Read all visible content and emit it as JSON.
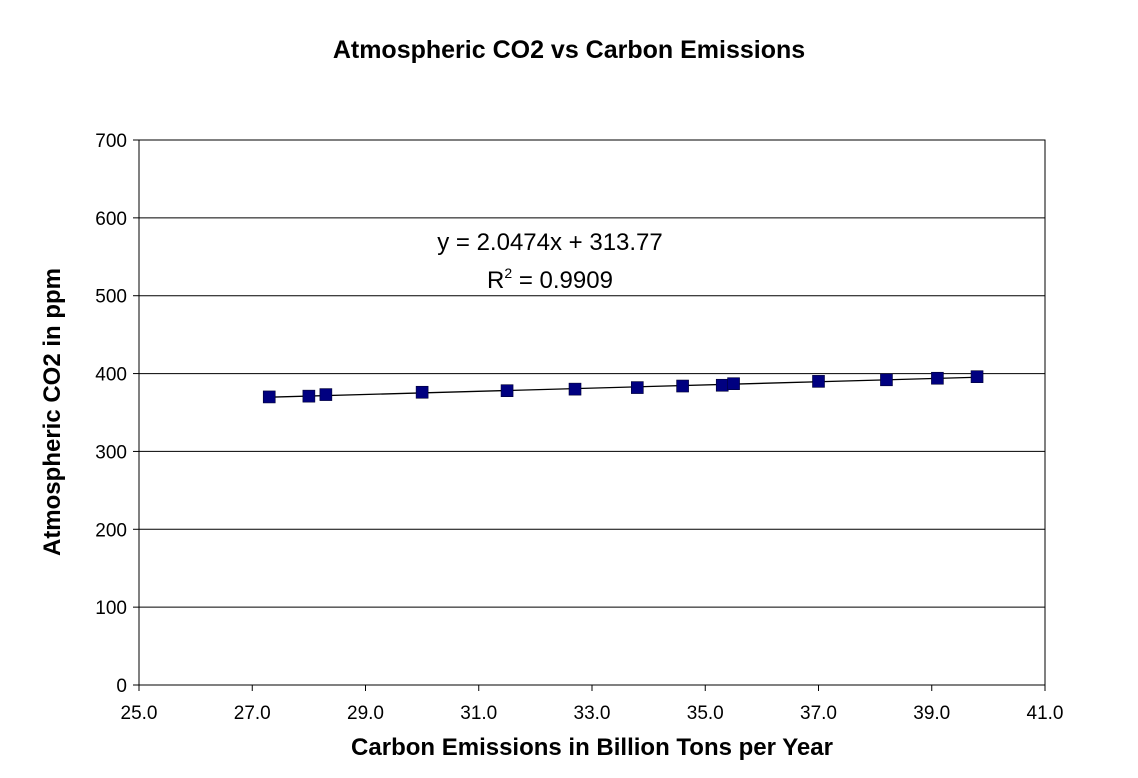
{
  "chart_data": {
    "type": "scatter",
    "title": "Atmospheric CO2 vs Carbon Emissions",
    "xlabel": "Carbon Emissions in Billion Tons per Year",
    "ylabel": "Atmospheric CO2 in ppm",
    "xlim": [
      25.0,
      41.0
    ],
    "ylim": [
      0,
      700
    ],
    "x_ticks": [
      "25.0",
      "27.0",
      "29.0",
      "31.0",
      "33.0",
      "35.0",
      "37.0",
      "39.0",
      "41.0"
    ],
    "y_ticks": [
      "0",
      "100",
      "200",
      "300",
      "400",
      "500",
      "600",
      "700"
    ],
    "grid": "horizontal",
    "marker": "square",
    "marker_color": "#000080",
    "trendline_color": "#000000",
    "series": [
      {
        "x": [
          27.3,
          28.0,
          28.3,
          30.0,
          31.5,
          32.7,
          33.8,
          34.6,
          35.3,
          35.5,
          37.0,
          38.2,
          39.1,
          39.8
        ],
        "y": [
          370,
          371,
          373,
          376,
          378,
          380,
          382,
          384,
          385,
          387,
          390,
          392,
          394,
          396
        ]
      }
    ],
    "trendline": {
      "slope": 2.0474,
      "intercept": 313.77,
      "x_range": [
        27.3,
        39.8
      ],
      "equation": "y = 2.0474x + 313.77",
      "r2_prefix": "R",
      "r2_sup": "2",
      "r2_value": " = 0.9909"
    }
  }
}
